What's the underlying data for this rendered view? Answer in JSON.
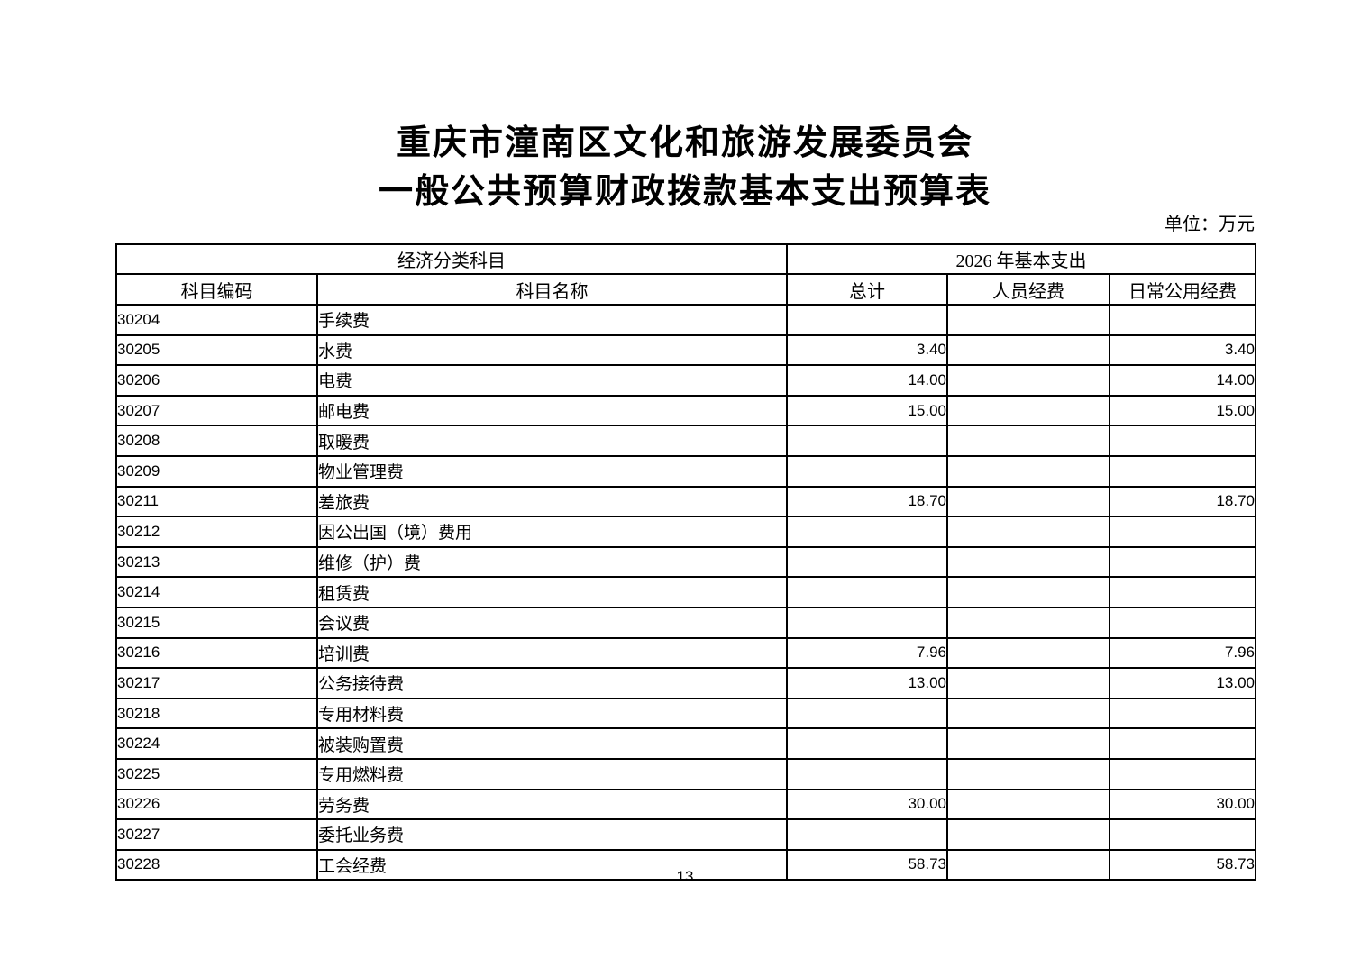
{
  "page": {
    "title_line1": "重庆市潼南区文化和旅游发展委员会",
    "title_line2": "一般公共预算财政拨款基本支出预算表",
    "unit_label": "单位：万元",
    "page_number": "13"
  },
  "table": {
    "group_headers": {
      "left": "经济分类科目",
      "right": "2026 年基本支出"
    },
    "columns": {
      "code": "科目编码",
      "name": "科目名称",
      "total": "总计",
      "personnel": "人员经费",
      "daily": "日常公用经费"
    },
    "rows": [
      {
        "code": "30204",
        "name": "手续费",
        "total": "",
        "personnel": "",
        "daily": ""
      },
      {
        "code": "30205",
        "name": "水费",
        "total": "3.40",
        "personnel": "",
        "daily": "3.40"
      },
      {
        "code": "30206",
        "name": "电费",
        "total": "14.00",
        "personnel": "",
        "daily": "14.00"
      },
      {
        "code": "30207",
        "name": "邮电费",
        "total": "15.00",
        "personnel": "",
        "daily": "15.00"
      },
      {
        "code": "30208",
        "name": "取暖费",
        "total": "",
        "personnel": "",
        "daily": ""
      },
      {
        "code": "30209",
        "name": "物业管理费",
        "total": "",
        "personnel": "",
        "daily": ""
      },
      {
        "code": "30211",
        "name": "差旅费",
        "total": "18.70",
        "personnel": "",
        "daily": "18.70"
      },
      {
        "code": "30212",
        "name": "因公出国（境）费用",
        "total": "",
        "personnel": "",
        "daily": ""
      },
      {
        "code": "30213",
        "name": "维修（护）费",
        "total": "",
        "personnel": "",
        "daily": ""
      },
      {
        "code": "30214",
        "name": "租赁费",
        "total": "",
        "personnel": "",
        "daily": ""
      },
      {
        "code": "30215",
        "name": "会议费",
        "total": "",
        "personnel": "",
        "daily": ""
      },
      {
        "code": "30216",
        "name": "培训费",
        "total": "7.96",
        "personnel": "",
        "daily": "7.96"
      },
      {
        "code": "30217",
        "name": "公务接待费",
        "total": "13.00",
        "personnel": "",
        "daily": "13.00"
      },
      {
        "code": "30218",
        "name": "专用材料费",
        "total": "",
        "personnel": "",
        "daily": ""
      },
      {
        "code": "30224",
        "name": "被装购置费",
        "total": "",
        "personnel": "",
        "daily": ""
      },
      {
        "code": "30225",
        "name": "专用燃料费",
        "total": "",
        "personnel": "",
        "daily": ""
      },
      {
        "code": "30226",
        "name": "劳务费",
        "total": "30.00",
        "personnel": "",
        "daily": "30.00"
      },
      {
        "code": "30227",
        "name": "委托业务费",
        "total": "",
        "personnel": "",
        "daily": ""
      },
      {
        "code": "30228",
        "name": "工会经费",
        "total": "58.73",
        "personnel": "",
        "daily": "58.73"
      }
    ]
  }
}
